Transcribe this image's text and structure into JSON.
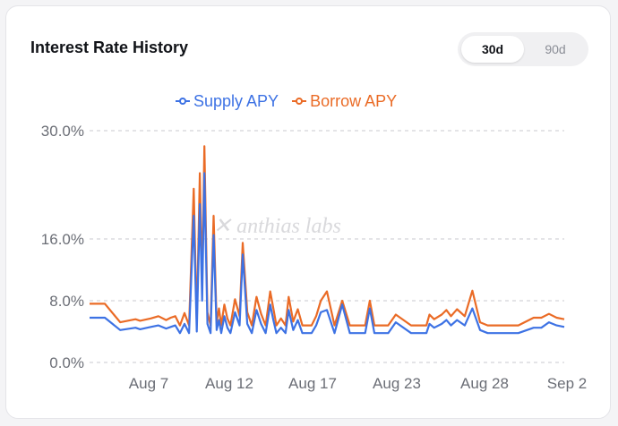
{
  "card": {
    "title": "Interest Rate History",
    "range_options": [
      {
        "label": "30d",
        "active": true
      },
      {
        "label": "90d",
        "active": false
      }
    ]
  },
  "watermark": "anthias labs",
  "chart_data": {
    "type": "line",
    "title": "",
    "xlabel": "",
    "ylabel": "",
    "y_ticks": [
      "0.0%",
      "8.0%",
      "16.0%",
      "30.0%"
    ],
    "x_ticks": [
      "Aug 7",
      "Aug 12",
      "Aug 17",
      "Aug 23",
      "Aug 28",
      "Sep 2"
    ],
    "ylim": [
      0,
      30
    ],
    "grid": true,
    "legend_position": "top",
    "colors": {
      "supply": "#3d72e4",
      "borrow": "#ea6b26"
    },
    "series": [
      {
        "name": "Supply APY",
        "key": "supply",
        "x": [
          0,
          1,
          2,
          3,
          3.3,
          4,
          4.5,
          5,
          5.3,
          5.6,
          5.9,
          6.2,
          6.5,
          6.8,
          7,
          7.2,
          7.35,
          7.5,
          7.7,
          7.9,
          8.1,
          8.3,
          8.45,
          8.6,
          8.8,
          9,
          9.2,
          9.5,
          9.8,
          10,
          10.3,
          10.6,
          10.9,
          11.2,
          11.5,
          11.8,
          12,
          12.2,
          12.5,
          12.8,
          13,
          13.3,
          13.6,
          13.9,
          14.2,
          14.5,
          14.8,
          15.1,
          15.5,
          16,
          16.5,
          17,
          17.5,
          18,
          18.3,
          18.6,
          19,
          19.5,
          20,
          21,
          22,
          22.2,
          22.5,
          23,
          23.3,
          23.6,
          24,
          24.5,
          25,
          25.5,
          26,
          26.5,
          27,
          28,
          29,
          29.5,
          30,
          30.5,
          31
        ],
        "values": [
          5.8,
          5.8,
          4.2,
          4.5,
          4.3,
          4.6,
          4.8,
          4.4,
          4.6,
          4.8,
          3.8,
          5.0,
          3.8,
          19.0,
          4.0,
          20.5,
          8.0,
          24.5,
          5.0,
          3.8,
          16.5,
          4.2,
          5.5,
          3.8,
          6.0,
          4.5,
          3.8,
          6.5,
          4.8,
          14.0,
          5.0,
          3.8,
          6.8,
          5.0,
          3.8,
          7.5,
          5.5,
          3.8,
          4.5,
          3.8,
          6.8,
          4.2,
          5.5,
          3.8,
          3.8,
          3.8,
          4.8,
          6.5,
          6.8,
          3.8,
          7.5,
          3.8,
          3.8,
          3.8,
          7.0,
          3.8,
          3.8,
          3.8,
          5.2,
          3.8,
          3.8,
          5.0,
          4.5,
          5.0,
          5.5,
          4.8,
          5.5,
          4.8,
          7.0,
          4.2,
          3.8,
          3.8,
          3.8,
          3.8,
          4.5,
          4.5,
          5.2,
          4.8,
          4.6
        ]
      },
      {
        "name": "Borrow APY",
        "key": "borrow",
        "x": [
          0,
          1,
          2,
          3,
          3.3,
          4,
          4.5,
          5,
          5.3,
          5.6,
          5.9,
          6.2,
          6.5,
          6.8,
          7,
          7.2,
          7.35,
          7.5,
          7.7,
          7.9,
          8.1,
          8.3,
          8.45,
          8.6,
          8.8,
          9,
          9.2,
          9.5,
          9.8,
          10,
          10.3,
          10.6,
          10.9,
          11.2,
          11.5,
          11.8,
          12,
          12.2,
          12.5,
          12.8,
          13,
          13.3,
          13.6,
          13.9,
          14.2,
          14.5,
          14.8,
          15.1,
          15.5,
          16,
          16.5,
          17,
          17.5,
          18,
          18.3,
          18.6,
          19,
          19.5,
          20,
          21,
          22,
          22.2,
          22.5,
          23,
          23.3,
          23.6,
          24,
          24.5,
          25,
          25.5,
          26,
          26.5,
          27,
          28,
          29,
          29.5,
          30,
          30.5,
          31
        ],
        "values": [
          7.6,
          7.6,
          5.2,
          5.6,
          5.4,
          5.7,
          6.0,
          5.5,
          5.8,
          6.0,
          4.8,
          6.4,
          4.8,
          22.5,
          5.0,
          24.5,
          10.0,
          28.0,
          6.5,
          4.8,
          19.0,
          5.2,
          7.0,
          4.8,
          7.5,
          5.7,
          4.8,
          8.2,
          6.0,
          15.5,
          6.5,
          4.8,
          8.5,
          6.3,
          4.8,
          9.2,
          7.0,
          4.8,
          5.7,
          4.8,
          8.5,
          5.3,
          6.9,
          4.8,
          4.8,
          4.8,
          6.0,
          8.0,
          9.2,
          4.8,
          8.0,
          4.8,
          4.8,
          4.8,
          8.0,
          4.8,
          4.8,
          4.8,
          6.2,
          4.8,
          4.8,
          6.2,
          5.6,
          6.2,
          6.8,
          6.0,
          6.9,
          6.0,
          9.3,
          5.2,
          4.8,
          4.8,
          4.8,
          4.8,
          5.8,
          5.8,
          6.3,
          5.8,
          5.6
        ]
      }
    ]
  }
}
